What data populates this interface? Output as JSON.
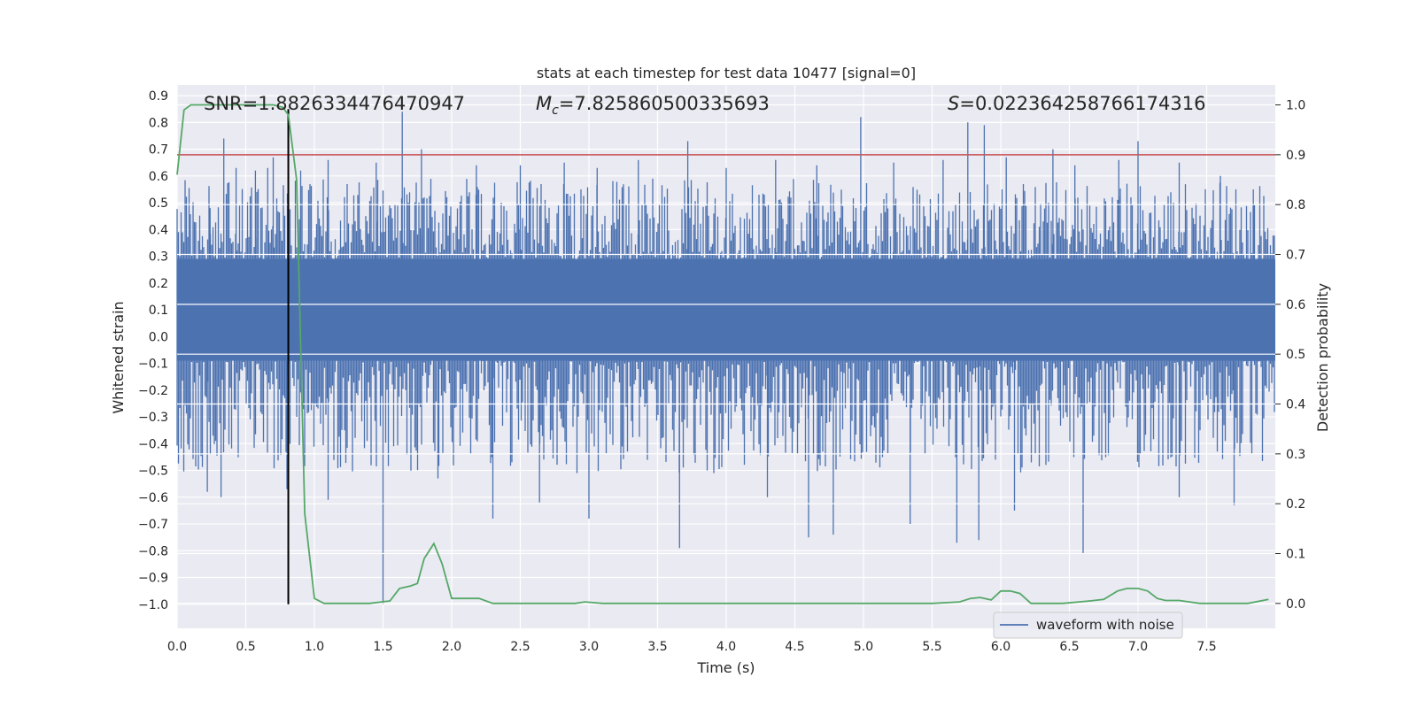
{
  "chart_data": {
    "type": "line",
    "title": "stats at each timestep for test data 10477 [signal=0]",
    "xlabel": "Time (s)",
    "ylabel": "Whitened strain",
    "y2label": "Detection probability",
    "xlim": [
      0.0,
      8.0
    ],
    "ylim": [
      -1.09,
      0.94
    ],
    "y2lim": [
      -0.05,
      1.04
    ],
    "grid": true,
    "legend_position": "lower-right",
    "x_ticks": [
      "0.0",
      "0.5",
      "1.0",
      "1.5",
      "2.0",
      "2.5",
      "3.0",
      "3.5",
      "4.0",
      "4.5",
      "5.0",
      "5.5",
      "6.0",
      "6.5",
      "7.0",
      "7.5"
    ],
    "y_ticks": [
      "0.9",
      "0.8",
      "0.7",
      "0.6",
      "0.5",
      "0.4",
      "0.3",
      "0.2",
      "0.1",
      "0.0",
      "−0.1",
      "−0.2",
      "−0.3",
      "−0.4",
      "−0.5",
      "−0.6",
      "−0.7",
      "−0.8",
      "−0.9",
      "−1.0"
    ],
    "y2_ticks": [
      "1.0",
      "0.9",
      "0.8",
      "0.7",
      "0.6",
      "0.5",
      "0.4",
      "0.3",
      "0.2",
      "0.1",
      "0.0"
    ],
    "annotations": {
      "snr": "SNR=1.8826334476470947",
      "mc": "=7.825860500335693",
      "mc_symbol": "M",
      "mc_subscript": "c",
      "s": "=0.022364258766174316",
      "s_symbol": "S"
    },
    "series": [
      {
        "name": "waveform with noise",
        "axis": "left",
        "color": "#4c72b0",
        "bulk_band": [
          -0.09,
          0.29
        ],
        "min_value": -1.0,
        "max_value": 0.84,
        "notable_peaks": [
          [
            0.24,
            0.48
          ],
          [
            0.34,
            0.74
          ],
          [
            0.43,
            0.63
          ],
          [
            0.57,
            0.62
          ],
          [
            0.66,
            0.63
          ],
          [
            0.7,
            0.67
          ],
          [
            0.9,
            0.62
          ],
          [
            1.1,
            0.66
          ],
          [
            1.45,
            0.65
          ],
          [
            1.64,
            0.84
          ],
          [
            1.78,
            0.7
          ],
          [
            2.18,
            0.64
          ],
          [
            2.5,
            0.64
          ],
          [
            2.82,
            0.65
          ],
          [
            3.06,
            0.63
          ],
          [
            3.36,
            0.66
          ],
          [
            3.72,
            0.73
          ],
          [
            4.0,
            0.63
          ],
          [
            4.36,
            0.66
          ],
          [
            4.66,
            0.64
          ],
          [
            4.98,
            0.82
          ],
          [
            5.22,
            0.65
          ],
          [
            5.58,
            0.66
          ],
          [
            5.76,
            0.8
          ],
          [
            5.88,
            0.79
          ],
          [
            6.04,
            0.67
          ],
          [
            6.38,
            0.7
          ],
          [
            6.54,
            0.64
          ],
          [
            6.86,
            0.66
          ],
          [
            7.0,
            0.73
          ],
          [
            7.3,
            0.65
          ],
          [
            7.6,
            0.6
          ],
          [
            7.84,
            0.55
          ]
        ],
        "notable_troughs": [
          [
            0.22,
            -0.58
          ],
          [
            0.32,
            -0.6
          ],
          [
            0.8,
            -0.57
          ],
          [
            1.1,
            -0.61
          ],
          [
            1.5,
            -1.0
          ],
          [
            1.9,
            -0.53
          ],
          [
            2.3,
            -0.68
          ],
          [
            2.64,
            -0.62
          ],
          [
            3.0,
            -0.68
          ],
          [
            3.66,
            -0.79
          ],
          [
            4.3,
            -0.6
          ],
          [
            4.6,
            -0.75
          ],
          [
            4.78,
            -0.74
          ],
          [
            5.34,
            -0.7
          ],
          [
            5.68,
            -0.77
          ],
          [
            5.84,
            -0.76
          ],
          [
            6.1,
            -0.65
          ],
          [
            6.6,
            -0.81
          ],
          [
            7.3,
            -0.6
          ],
          [
            7.7,
            -0.63
          ]
        ]
      },
      {
        "name": "",
        "axis": "right",
        "color": "#55a868",
        "x": [
          0.0,
          0.05,
          0.1,
          0.3,
          0.5,
          0.7,
          0.77,
          0.81,
          0.87,
          0.93,
          1.0,
          1.07,
          1.2,
          1.4,
          1.55,
          1.62,
          1.7,
          1.75,
          1.8,
          1.87,
          1.93,
          2.0,
          2.05,
          2.2,
          2.3,
          2.6,
          2.9,
          2.97,
          3.1,
          3.5,
          4.0,
          4.5,
          5.0,
          5.2,
          5.5,
          5.7,
          5.78,
          5.85,
          5.93,
          6.0,
          6.07,
          6.14,
          6.22,
          6.3,
          6.45,
          6.65,
          6.75,
          6.85,
          6.92,
          7.0,
          7.07,
          7.14,
          7.2,
          7.3,
          7.45,
          7.6,
          7.8,
          7.95
        ],
        "values": [
          0.86,
          0.99,
          1.0,
          1.0,
          1.0,
          1.0,
          0.995,
          0.98,
          0.85,
          0.18,
          0.01,
          0.0,
          0.0,
          0.0,
          0.005,
          0.03,
          0.035,
          0.04,
          0.09,
          0.12,
          0.08,
          0.01,
          0.01,
          0.01,
          0.0,
          0.0,
          0.0,
          0.003,
          0.0,
          0.0,
          0.0,
          0.0,
          0.0,
          0.0,
          0.0,
          0.003,
          0.01,
          0.012,
          0.007,
          0.025,
          0.025,
          0.02,
          0.0,
          0.0,
          0.0,
          0.005,
          0.008,
          0.025,
          0.03,
          0.03,
          0.025,
          0.01,
          0.006,
          0.006,
          0.0,
          0.0,
          0.0,
          0.008
        ]
      }
    ],
    "threshold_line": {
      "axis": "right",
      "value": 0.9,
      "color": "#c44e52"
    },
    "marker_line": {
      "x": 0.81,
      "y_from": -1.0,
      "y_to": 0.85,
      "color": "#000000"
    }
  }
}
